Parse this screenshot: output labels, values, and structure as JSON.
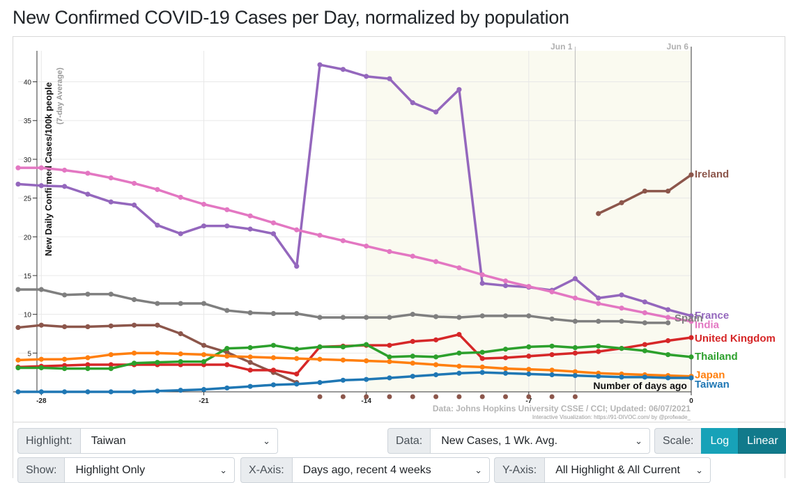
{
  "page": {
    "title": "New Confirmed COVID-19 Cases per Day, normalized by population"
  },
  "colors": {
    "France": "#9467bd",
    "India": "#e377c2",
    "Ireland": "#8c564b",
    "Spain": "#7f7f7f",
    "United Kingdom": "#d62728",
    "Thailand": "#2ca02c",
    "Japan": "#ff7f0e",
    "Taiwan": "#1f77b4",
    "recent_window": "#fafaf0"
  },
  "chart_data": {
    "type": "line",
    "title": "New Confirmed COVID-19 Cases per Day, normalized by population",
    "ylabel": "New Daily Confirmed Cases/100k people",
    "ylabel_sub": "(7-day Average)",
    "xlabel": "Number of days ago",
    "xlim": [
      -29,
      0
    ],
    "ylim": [
      0,
      44
    ],
    "x_ticks": [
      -28,
      -21,
      -14,
      -7,
      0
    ],
    "y_ticks": [
      5,
      10,
      15,
      20,
      25,
      30,
      35,
      40
    ],
    "date_markers": [
      {
        "label": "Jun 1",
        "x": -5
      },
      {
        "label": "Jun 6",
        "x": 0
      }
    ],
    "recent_window_start": -14,
    "bottom_markers_x": [
      -16,
      -15,
      -14,
      -13,
      -12,
      -11,
      -10,
      -9,
      -8,
      -7,
      -6,
      -5
    ],
    "source_text": "Data: Johns Hopkins University CSSE / CCI; Updated: 06/07/2021",
    "credit_text": "Interactive Visualization: https://91-DIVOC.com/ by @profwade_",
    "legend": "labels at line ends",
    "series": [
      {
        "name": "France",
        "x": [
          -29,
          -28,
          -27,
          -26,
          -25,
          -24,
          -23,
          -22,
          -21,
          -20,
          -19,
          -18,
          -17,
          -16,
          -15,
          -14,
          -13,
          -12,
          -11,
          -10,
          -9,
          -8,
          -7,
          -6,
          -5,
          -4,
          -3,
          -2,
          -1,
          0
        ],
        "values": [
          26.8,
          26.6,
          26.5,
          25.5,
          24.5,
          24.1,
          21.5,
          20.4,
          21.4,
          21.4,
          21.0,
          20.4,
          16.2,
          42.2,
          41.6,
          40.7,
          40.4,
          37.3,
          36.1,
          39.0,
          14.0,
          13.7,
          13.5,
          13.1,
          14.6,
          12.1,
          12.5,
          11.6,
          10.6,
          9.8
        ]
      },
      {
        "name": "India",
        "x": [
          -29,
          -28,
          -27,
          -26,
          -25,
          -24,
          -23,
          -22,
          -21,
          -20,
          -19,
          -18,
          -17,
          -16,
          -15,
          -14,
          -13,
          -12,
          -11,
          -10,
          -9,
          -8,
          -7,
          -6,
          -5,
          -4,
          -3,
          -2,
          -1,
          0
        ],
        "values": [
          28.9,
          28.9,
          28.6,
          28.2,
          27.6,
          26.9,
          26.1,
          25.1,
          24.2,
          23.5,
          22.7,
          21.8,
          20.9,
          20.2,
          19.5,
          18.8,
          18.1,
          17.5,
          16.8,
          16.0,
          15.1,
          14.3,
          13.6,
          12.9,
          12.1,
          11.4,
          10.8,
          10.2,
          9.6,
          9.1
        ]
      },
      {
        "name": "Ireland",
        "x": [
          -4,
          -3,
          -2,
          -1,
          0
        ],
        "values": [
          23.0,
          24.4,
          25.9,
          25.9,
          28.0
        ]
      },
      {
        "name": "Spain",
        "x": [
          -29,
          -28,
          -27,
          -26,
          -25,
          -24,
          -23,
          -22,
          -21,
          -20,
          -19,
          -18,
          -17,
          -16,
          -15,
          -14,
          -13,
          -12,
          -11,
          -10,
          -9,
          -8,
          -7,
          -6,
          -5,
          -4,
          -3,
          -2,
          -1
        ],
        "values": [
          13.2,
          13.2,
          12.5,
          12.6,
          12.6,
          11.9,
          11.4,
          11.4,
          11.4,
          10.5,
          10.2,
          10.1,
          10.1,
          9.6,
          9.6,
          9.6,
          9.6,
          10.0,
          9.7,
          9.6,
          9.8,
          9.8,
          9.8,
          9.4,
          9.1,
          9.1,
          9.1,
          8.9,
          8.9
        ]
      },
      {
        "name": "Ireland (earlier)",
        "x": [
          -29,
          -28,
          -27,
          -26,
          -25,
          -24,
          -23,
          -22,
          -21,
          -20,
          -19,
          -18,
          -17
        ],
        "values": [
          8.3,
          8.6,
          8.4,
          8.4,
          8.5,
          8.6,
          8.6,
          7.5,
          6.0,
          5.1,
          3.8,
          2.5,
          1.2
        ]
      },
      {
        "name": "United Kingdom",
        "x": [
          -29,
          -28,
          -27,
          -26,
          -25,
          -24,
          -23,
          -22,
          -21,
          -20,
          -19,
          -18,
          -17,
          -16,
          -15,
          -14,
          -13,
          -12,
          -11,
          -10,
          -9,
          -8,
          -7,
          -6,
          -5,
          -4,
          -3,
          -2,
          -1,
          0
        ],
        "values": [
          3.2,
          3.3,
          3.4,
          3.5,
          3.5,
          3.5,
          3.5,
          3.5,
          3.5,
          3.5,
          2.8,
          2.8,
          2.3,
          5.8,
          5.9,
          6.0,
          6.0,
          6.5,
          6.7,
          7.4,
          4.3,
          4.4,
          4.6,
          4.8,
          5.0,
          5.2,
          5.6,
          6.1,
          6.6,
          7.0
        ]
      },
      {
        "name": "Thailand",
        "x": [
          -29,
          -28,
          -27,
          -26,
          -25,
          -24,
          -23,
          -22,
          -21,
          -20,
          -19,
          -18,
          -17,
          -16,
          -15,
          -14,
          -13,
          -12,
          -11,
          -10,
          -9,
          -8,
          -7,
          -6,
          -5,
          -4,
          -3,
          -2,
          -1,
          0
        ],
        "values": [
          3.1,
          3.1,
          3.0,
          3.0,
          3.0,
          3.7,
          3.8,
          3.9,
          3.9,
          5.6,
          5.7,
          6.0,
          5.5,
          5.8,
          5.8,
          6.1,
          4.5,
          4.6,
          4.5,
          5.0,
          5.1,
          5.5,
          5.8,
          5.9,
          5.7,
          5.9,
          5.6,
          5.3,
          4.8,
          4.5
        ]
      },
      {
        "name": "Japan",
        "x": [
          -29,
          -28,
          -27,
          -26,
          -25,
          -24,
          -23,
          -22,
          -21,
          -20,
          -19,
          -18,
          -17,
          -16,
          -15,
          -14,
          -13,
          -12,
          -11,
          -10,
          -9,
          -8,
          -7,
          -6,
          -5,
          -4,
          -3,
          -2,
          -1,
          0
        ],
        "values": [
          4.1,
          4.2,
          4.2,
          4.4,
          4.8,
          5.0,
          5.0,
          4.9,
          4.8,
          4.6,
          4.5,
          4.4,
          4.3,
          4.2,
          4.1,
          4.0,
          3.9,
          3.7,
          3.5,
          3.3,
          3.2,
          3.0,
          2.9,
          2.8,
          2.6,
          2.4,
          2.3,
          2.2,
          2.1,
          2.0
        ]
      },
      {
        "name": "Taiwan",
        "x": [
          -29,
          -28,
          -27,
          -26,
          -25,
          -24,
          -23,
          -22,
          -21,
          -20,
          -19,
          -18,
          -17,
          -16,
          -15,
          -14,
          -13,
          -12,
          -11,
          -10,
          -9,
          -8,
          -7,
          -6,
          -5,
          -4,
          -3,
          -2,
          -1,
          0
        ],
        "values": [
          0.0,
          0.0,
          0.0,
          0.0,
          0.0,
          0.0,
          0.1,
          0.2,
          0.3,
          0.5,
          0.7,
          0.9,
          1.0,
          1.2,
          1.5,
          1.6,
          1.8,
          2.0,
          2.2,
          2.4,
          2.5,
          2.4,
          2.3,
          2.2,
          2.1,
          2.0,
          1.9,
          1.9,
          1.8,
          1.8
        ]
      }
    ],
    "end_labels": [
      {
        "name": "Ireland",
        "value": 28.0
      },
      {
        "name": "France",
        "value": 9.8
      },
      {
        "name": "India",
        "value": 9.1
      },
      {
        "name": "Spain",
        "value": 8.9
      },
      {
        "name": "United Kingdom",
        "value": 7.0
      },
      {
        "name": "Thailand",
        "value": 4.5
      },
      {
        "name": "Japan",
        "value": 2.0
      },
      {
        "name": "Taiwan",
        "value": 1.8
      }
    ]
  },
  "controls": {
    "highlight": {
      "label": "Highlight:",
      "value": "Taiwan"
    },
    "data": {
      "label": "Data:",
      "value": "New Cases, 1 Wk. Avg."
    },
    "scale": {
      "label": "Scale:",
      "log": "Log",
      "linear": "Linear"
    },
    "show": {
      "label": "Show:",
      "value": "Highlight Only"
    },
    "xaxis": {
      "label": "X-Axis:",
      "value": "Days ago, recent 4 weeks"
    },
    "yaxis": {
      "label": "Y-Axis:",
      "value": "All Highlight & All Current"
    }
  }
}
